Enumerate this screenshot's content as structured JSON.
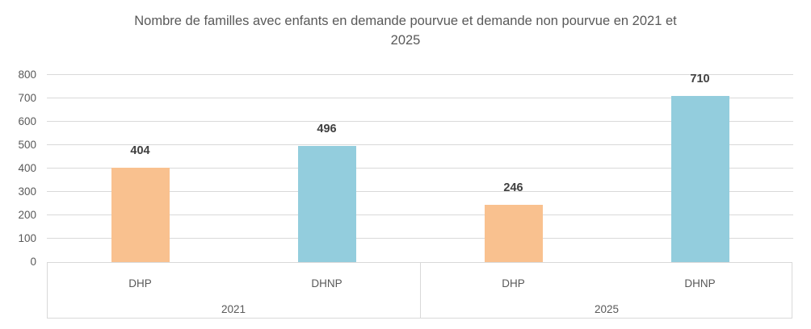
{
  "chart_data": {
    "type": "bar",
    "title": "Nombre de familles avec enfants en demande pourvue et demande non pourvue en 2021 et 2025",
    "title_lines": [
      "Nombre de familles avec enfants en demande pourvue et demande non pourvue en 2021 et",
      "2025"
    ],
    "xlabel": "",
    "ylabel": "",
    "ylim": [
      0,
      800
    ],
    "y_ticks": [
      0,
      100,
      200,
      300,
      400,
      500,
      600,
      700,
      800
    ],
    "grid": true,
    "legend": false,
    "data_labels": true,
    "categories_level1": [
      "DHP",
      "DHNP"
    ],
    "groups": [
      {
        "label": "2021",
        "bars": [
          {
            "category": "DHP",
            "value": 404,
            "color": "#F9C18F"
          },
          {
            "category": "DHNP",
            "value": 496,
            "color": "#93CDDD"
          }
        ]
      },
      {
        "label": "2025",
        "bars": [
          {
            "category": "DHP",
            "value": 246,
            "color": "#F9C18F"
          },
          {
            "category": "DHNP",
            "value": 710,
            "color": "#93CDDD"
          }
        ]
      }
    ],
    "colors": {
      "dhp_bar": "#F9C18F",
      "dhnp_bar": "#93CDDD",
      "gridline": "#D9D9D9",
      "axis_text": "#595959",
      "value_label_text": "#404040",
      "title_text": "#595959",
      "background": "#FFFFFF"
    }
  }
}
